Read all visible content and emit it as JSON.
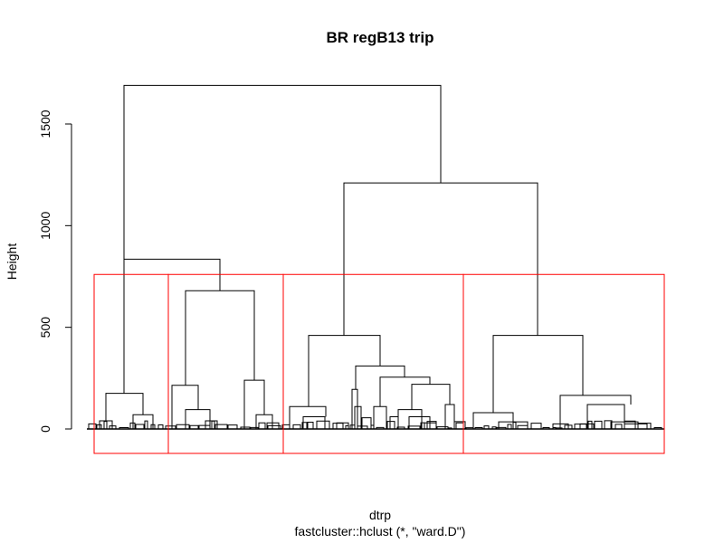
{
  "chart_data": {
    "type": "dendrogram",
    "title": "BR regB13  trip",
    "xlabel": "dtrp",
    "subtitle": "fastcluster::hclust (*, \"ward.D\")",
    "ylabel": "Height",
    "ylim": [
      0,
      1700
    ],
    "yticks": [
      "0",
      "500",
      "1000",
      "1500"
    ],
    "ytick_values": [
      0,
      500,
      1000,
      1500
    ],
    "n_leaves": 600,
    "cut_clusters": 4,
    "cut_height": 760,
    "box_color": "#ff0000",
    "line_color": "#000000",
    "merges": [
      {
        "x1": 137,
        "x2": 487,
        "h": 1690
      },
      {
        "x1": 380,
        "x2": 594,
        "h": 1210
      },
      {
        "x1": 137,
        "x2": 243,
        "h": 835
      },
      {
        "x1": 205,
        "x2": 281,
        "h": 680
      },
      {
        "x1": 341,
        "x2": 420,
        "h": 460
      },
      {
        "x1": 545,
        "x2": 644,
        "h": 460
      },
      {
        "x1": 117,
        "x2": 158,
        "h": 175
      },
      {
        "x1": 190,
        "x2": 219,
        "h": 215
      },
      {
        "x1": 270,
        "x2": 292,
        "h": 240
      },
      {
        "x1": 320,
        "x2": 360,
        "h": 110
      },
      {
        "x1": 393,
        "x2": 447,
        "h": 310
      },
      {
        "x1": 420,
        "x2": 475,
        "h": 255
      },
      {
        "x1": 455,
        "x2": 497,
        "h": 220
      },
      {
        "x1": 389,
        "x2": 395,
        "h": 195
      },
      {
        "x1": 413,
        "x2": 427,
        "h": 110
      },
      {
        "x1": 440,
        "x2": 466,
        "h": 95
      },
      {
        "x1": 492,
        "x2": 502,
        "h": 120
      },
      {
        "x1": 523,
        "x2": 567,
        "h": 80
      },
      {
        "x1": 619,
        "x2": 697,
        "h": 165
      },
      {
        "x1": 649,
        "x2": 690,
        "h": 120
      },
      {
        "x1": 110,
        "x2": 124,
        "h": 40
      },
      {
        "x1": 147,
        "x2": 169,
        "h": 70
      },
      {
        "x1": 205,
        "x2": 232,
        "h": 95
      },
      {
        "x1": 284,
        "x2": 301,
        "h": 70
      },
      {
        "x1": 335,
        "x2": 359,
        "h": 60
      },
      {
        "x1": 551,
        "x2": 583,
        "h": 35
      },
      {
        "x1": 675,
        "x2": 705,
        "h": 35
      }
    ]
  }
}
